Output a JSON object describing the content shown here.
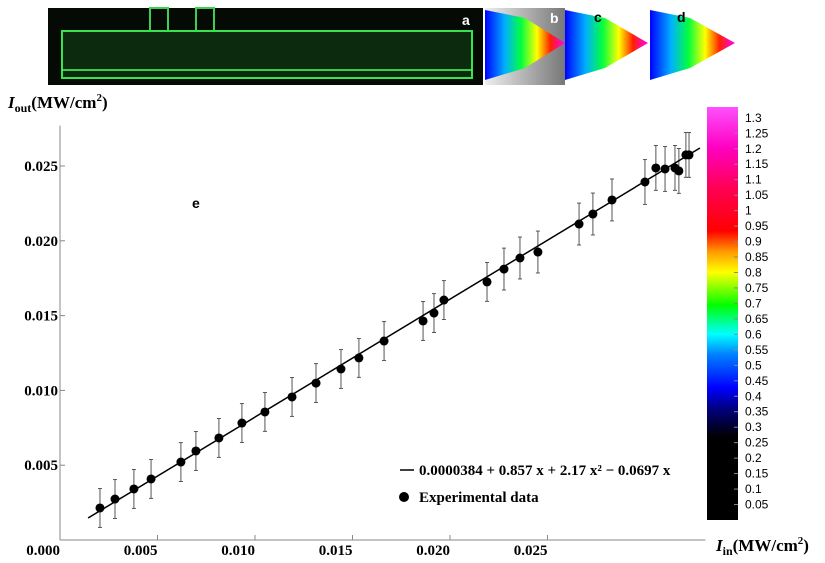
{
  "chart_data": {
    "type": "scatter",
    "panel_labels": [
      "a",
      "b",
      "c",
      "d",
      "e"
    ],
    "ylabel": [
      "I",
      "out",
      "(MW/cm",
      "2",
      ")"
    ],
    "xlabel": [
      "I",
      "in",
      "(MW/cm",
      "2",
      ")"
    ],
    "xlim": [
      0,
      0.0331
    ],
    "ylim": [
      0,
      0.0277
    ],
    "xticks": [
      {
        "value": 0,
        "label": "0.000"
      },
      0.005,
      {
        "value": 0.01,
        "label": "0.010"
      },
      0.015,
      {
        "value": 0.02,
        "label": "0.020"
      },
      0.025
    ],
    "yticks": [
      0.005,
      {
        "value": 0.01,
        "label": "0.010"
      },
      0.015,
      {
        "value": 0.02,
        "label": "0.020"
      },
      0.025
    ],
    "legend": "lower right",
    "series": [
      {
        "name": "Experimental data",
        "color": "#000000",
        "x": [
          0.00205,
          0.00282,
          0.00379,
          0.00467,
          0.0062,
          0.00697,
          0.00815,
          0.00933,
          0.01051,
          0.0119,
          0.01313,
          0.01441,
          0.01533,
          0.01662,
          0.01862,
          0.01918,
          0.01969,
          0.0219,
          0.02277,
          0.02359,
          0.02451,
          0.02662,
          0.02733,
          0.02831,
          0.03,
          0.03056,
          0.03103,
          0.03154,
          0.03174,
          0.0321,
          0.03226
        ],
        "values": [
          0.00214,
          0.00274,
          0.00341,
          0.00408,
          0.00521,
          0.00595,
          0.00682,
          0.00782,
          0.00856,
          0.00956,
          0.01049,
          0.01143,
          0.01217,
          0.0133,
          0.01464,
          0.01517,
          0.01604,
          0.01725,
          0.01811,
          0.01885,
          0.01925,
          0.02112,
          0.02179,
          0.02273,
          0.02393,
          0.02487,
          0.0248,
          0.02487,
          0.02467,
          0.02574,
          0.02574
        ],
        "errors": [
          0.0013,
          0.0013,
          0.0013,
          0.0013,
          0.0013,
          0.0013,
          0.0013,
          0.0013,
          0.0013,
          0.0013,
          0.0013,
          0.0013,
          0.0013,
          0.0013,
          0.0013,
          0.0013,
          0.0013,
          0.0013,
          0.0014,
          0.0014,
          0.0014,
          0.0014,
          0.0014,
          0.0014,
          0.0015,
          0.0015,
          0.0015,
          0.0015,
          0.0015,
          0.0015,
          0.0015
        ]
      },
      {
        "name": "0.0000384 + 0.857 x + 2.17 x² − 0.0697 x",
        "type": "line",
        "color": "#000000",
        "x": [
          0.00144,
          0.03282
        ],
        "values": [
          0.00147,
          0.0262
        ]
      }
    ],
    "colorbar": {
      "lim": [
        0,
        1.335
      ],
      "ticks": [
        0.05,
        0.1,
        0.15,
        0.2,
        0.25,
        0.3,
        0.35,
        0.4,
        0.45,
        0.5,
        0.55,
        0.6,
        0.65,
        0.7,
        0.75,
        0.8,
        0.85,
        0.9,
        0.95,
        1,
        1.05,
        1.1,
        1.15,
        1.2,
        1.25,
        1.3
      ]
    }
  }
}
